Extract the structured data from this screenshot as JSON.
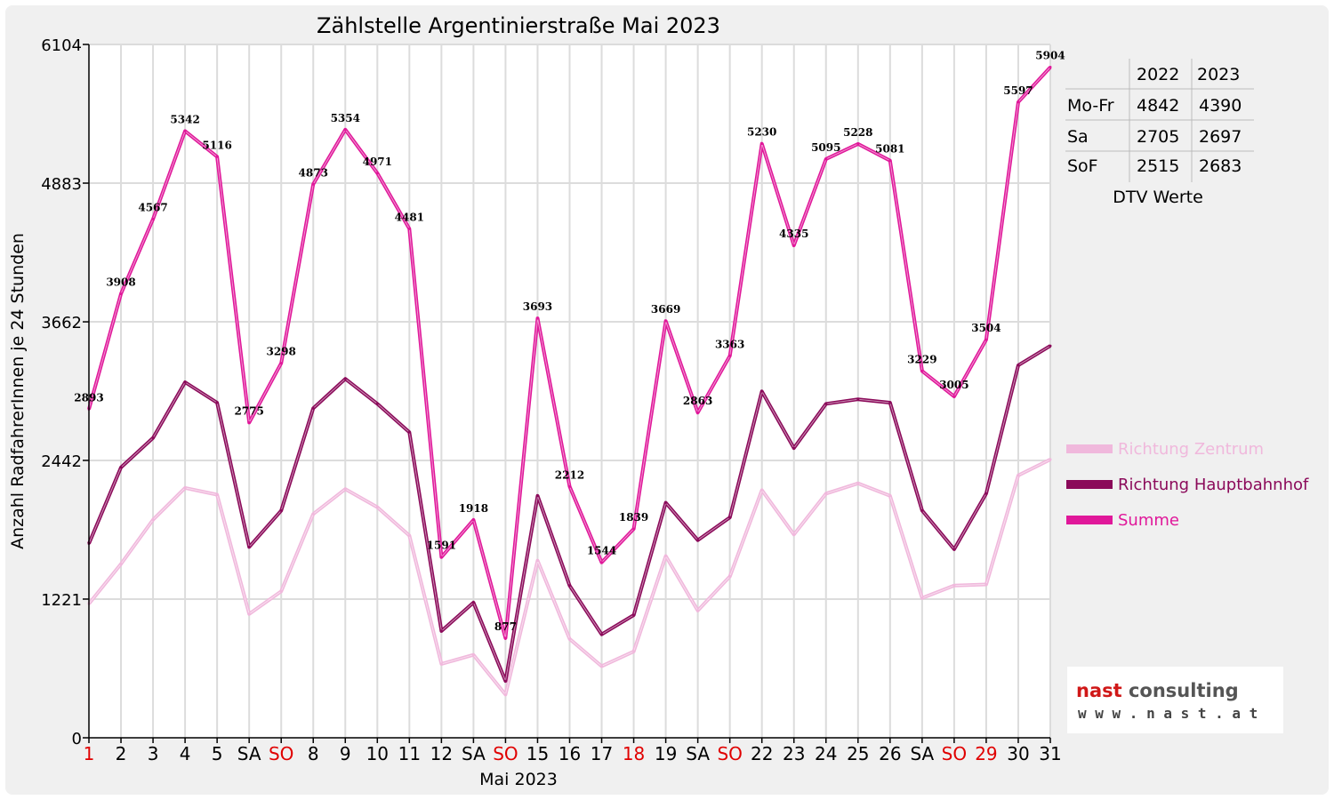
{
  "chart_data": {
    "type": "line",
    "title": "Zählstelle Argentinierstraße Mai 2023",
    "xlabel": "Mai 2023",
    "ylabel": "Anzahl RadfahrerInnen je 24 Stunden",
    "ylim": [
      0,
      6104
    ],
    "yticks": [
      "0",
      "1221",
      "2442",
      "3662",
      "4883",
      "6104"
    ],
    "grid": true,
    "x": [
      1,
      2,
      3,
      4,
      5,
      6,
      7,
      8,
      9,
      10,
      11,
      12,
      13,
      14,
      15,
      16,
      17,
      18,
      19,
      20,
      21,
      22,
      23,
      24,
      25,
      26,
      27,
      28,
      29,
      30,
      31
    ],
    "xtick_labels": [
      "1",
      "2",
      "3",
      "4",
      "5",
      "SA",
      "SO",
      "8",
      "9",
      "10",
      "11",
      "12",
      "SA",
      "SO",
      "15",
      "16",
      "17",
      "18",
      "19",
      "SA",
      "SO",
      "22",
      "23",
      "24",
      "25",
      "26",
      "SA",
      "SO",
      "29",
      "30",
      "31"
    ],
    "xtick_red": [
      true,
      false,
      false,
      false,
      false,
      false,
      true,
      false,
      false,
      false,
      false,
      false,
      false,
      true,
      false,
      false,
      false,
      true,
      false,
      false,
      true,
      false,
      false,
      false,
      false,
      false,
      false,
      true,
      true,
      false,
      false
    ],
    "series": [
      {
        "name": "Richtung Zentrum",
        "color": "#f0b8dc",
        "values": [
          1180,
          1530,
          1920,
          2200,
          2140,
          1090,
          1290,
          1970,
          2190,
          2030,
          1780,
          650,
          730,
          380,
          1560,
          870,
          630,
          760,
          1600,
          1120,
          1420,
          2180,
          1790,
          2150,
          2240,
          2130,
          1230,
          1340,
          1350,
          2310,
          2450
        ]
      },
      {
        "name": "Richtung Hauptbahnhof",
        "color": "#8b0a5a",
        "values": [
          1710,
          2380,
          2640,
          3130,
          2950,
          1680,
          2000,
          2900,
          3160,
          2940,
          2690,
          940,
          1190,
          500,
          2130,
          1340,
          910,
          1080,
          2070,
          1740,
          1940,
          3050,
          2550,
          2940,
          2980,
          2950,
          2000,
          1660,
          2150,
          3280,
          3450
        ]
      },
      {
        "name": "Summe",
        "color": "#e0189a",
        "values": [
          2893,
          3908,
          4567,
          5342,
          5116,
          2775,
          3298,
          4873,
          5354,
          4971,
          4481,
          1591,
          1918,
          877,
          3693,
          2212,
          1544,
          1839,
          3669,
          2863,
          3363,
          5230,
          4335,
          5095,
          5228,
          5081,
          3229,
          3005,
          3504,
          5597,
          5904
        ]
      }
    ],
    "data_labels": [
      "2893",
      "3908",
      "4567",
      "5342",
      "5116",
      "2775",
      "3298",
      "4873",
      "5354",
      "4971",
      "4481",
      "1591",
      "1918",
      "877",
      "3693",
      "2212",
      "1544",
      "1839",
      "3669",
      "2863",
      "3363",
      "5230",
      "4335",
      "5095",
      "5228",
      "5081",
      "3229",
      "3005",
      "3504",
      "5597",
      "5904"
    ],
    "legend_position": "right"
  },
  "dtv_table": {
    "caption": "DTV Werte",
    "headers": [
      "",
      "2022",
      "2023"
    ],
    "rows": [
      [
        "Mo-Fr",
        "4842",
        "4390"
      ],
      [
        "Sa",
        "2705",
        "2697"
      ],
      [
        "SoF",
        "2515",
        "2683"
      ]
    ]
  },
  "logo": {
    "part1": "nast",
    "part2": "consulting",
    "url": "w w w . n a s t . a t",
    "part1_color": "#d01818",
    "part2_color": "#555555"
  }
}
